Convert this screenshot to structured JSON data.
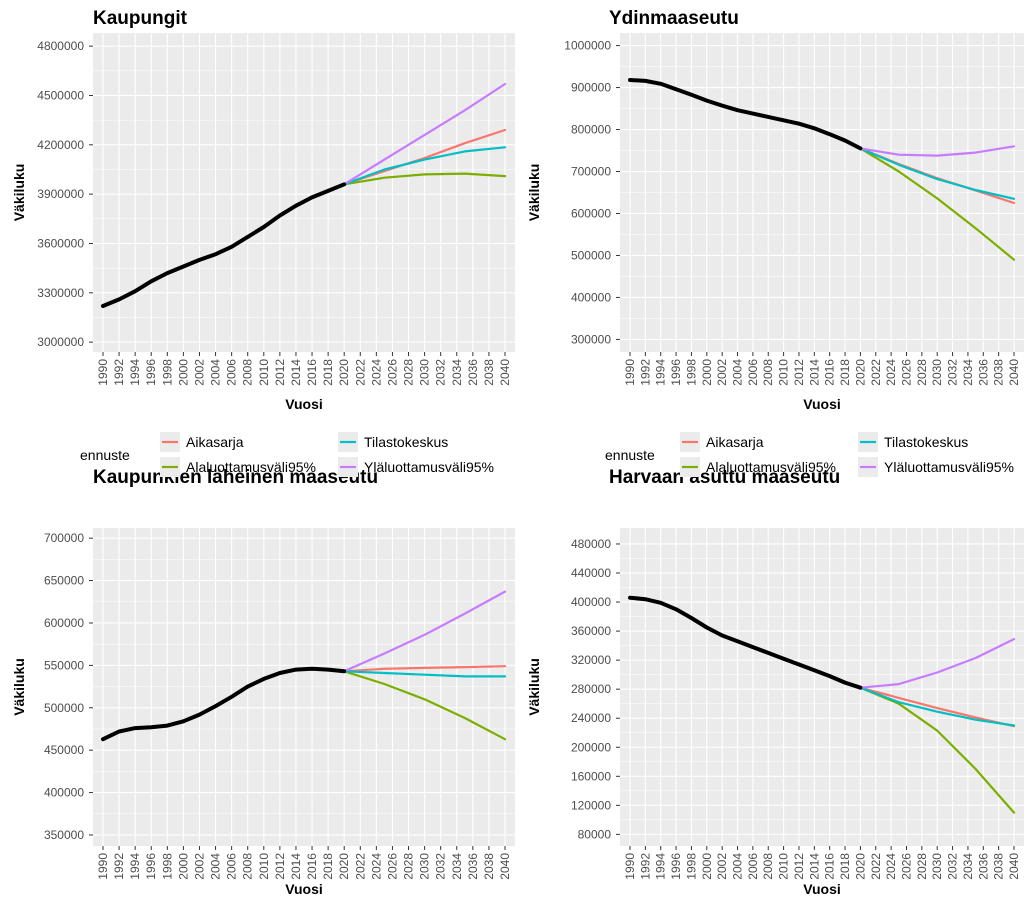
{
  "colors": {
    "historical": "#000000",
    "Aikasarja": "#F8766D",
    "Alaluottamusväli95%": "#7CAE00",
    "Tilastokeskus": "#00BFC4",
    "Yläluottamusväli95%": "#C77CFF",
    "panel_bg": "#EBEBEB",
    "grid": "#FFFFFF"
  },
  "legend": {
    "title": "ennuste",
    "entries": [
      "Aikasarja",
      "Alaluottamusväli95%",
      "Tilastokeskus",
      "Yläluottamusväli95%"
    ]
  },
  "chart_data": [
    {
      "type": "line",
      "title": "Kaupungit",
      "xlabel": "Vuosi",
      "ylabel": "Väkiluku",
      "xlim": [
        1990,
        2040
      ],
      "ylim": [
        2940000,
        4880000
      ],
      "x_ticks": [
        1990,
        1992,
        1994,
        1996,
        1998,
        2000,
        2002,
        2004,
        2006,
        2008,
        2010,
        2012,
        2014,
        2016,
        2018,
        2020,
        2022,
        2024,
        2026,
        2028,
        2030,
        2032,
        2034,
        2036,
        2038,
        2040
      ],
      "y_ticks": [
        3000000,
        3300000,
        3600000,
        3900000,
        4200000,
        4500000,
        4800000
      ],
      "y_tick_labels": [
        "3000000",
        "3300000",
        "3600000",
        "3900000",
        "4200000",
        "4500000",
        "4800000"
      ],
      "historical": {
        "x": [
          1990,
          1992,
          1994,
          1996,
          1998,
          2000,
          2002,
          2004,
          2006,
          2008,
          2010,
          2012,
          2014,
          2016,
          2018,
          2020
        ],
        "y": [
          3220000,
          3260000,
          3310000,
          3370000,
          3420000,
          3460000,
          3500000,
          3535000,
          3580000,
          3640000,
          3700000,
          3770000,
          3830000,
          3880000,
          3920000,
          3960000
        ]
      },
      "series": [
        {
          "name": "Aikasarja",
          "x": [
            2020,
            2025,
            2030,
            2035,
            2040
          ],
          "y": [
            3960000,
            4040000,
            4120000,
            4210000,
            4290000
          ]
        },
        {
          "name": "Alaluottamusväli95%",
          "x": [
            2020,
            2025,
            2030,
            2035,
            2040
          ],
          "y": [
            3960000,
            4000000,
            4020000,
            4025000,
            4010000
          ]
        },
        {
          "name": "Tilastokeskus",
          "x": [
            2020,
            2025,
            2030,
            2035,
            2040
          ],
          "y": [
            3960000,
            4050000,
            4110000,
            4160000,
            4185000
          ]
        },
        {
          "name": "Yläluottamusväli95%",
          "x": [
            2020,
            2025,
            2030,
            2035,
            2040
          ],
          "y": [
            3960000,
            4110000,
            4260000,
            4410000,
            4570000
          ]
        }
      ]
    },
    {
      "type": "line",
      "title": "Ydinmaaseutu",
      "xlabel": "Vuosi",
      "ylabel": "Väkiluku",
      "xlim": [
        1990,
        2040
      ],
      "ylim": [
        270000,
        1030000
      ],
      "x_ticks": [
        1990,
        1992,
        1994,
        1996,
        1998,
        2000,
        2002,
        2004,
        2006,
        2008,
        2010,
        2012,
        2014,
        2016,
        2018,
        2020,
        2022,
        2024,
        2026,
        2028,
        2030,
        2032,
        2034,
        2036,
        2038,
        2040
      ],
      "y_ticks": [
        300000,
        400000,
        500000,
        600000,
        700000,
        800000,
        900000,
        1000000
      ],
      "y_tick_labels": [
        "300000",
        "400000",
        "500000",
        "600000",
        "700000",
        "800000",
        "900000",
        "1000000"
      ],
      "historical": {
        "x": [
          1990,
          1992,
          1994,
          1996,
          1998,
          2000,
          2002,
          2004,
          2006,
          2008,
          2010,
          2012,
          2014,
          2016,
          2018,
          2020
        ],
        "y": [
          918000,
          916000,
          909000,
          896000,
          883000,
          869000,
          857000,
          846000,
          838000,
          830000,
          822000,
          814000,
          803000,
          789000,
          774000,
          755000
        ]
      },
      "series": [
        {
          "name": "Aikasarja",
          "x": [
            2020,
            2025,
            2030,
            2035,
            2040
          ],
          "y": [
            755000,
            718000,
            684000,
            655000,
            625000
          ]
        },
        {
          "name": "Alaluottamusväli95%",
          "x": [
            2020,
            2025,
            2030,
            2035,
            2040
          ],
          "y": [
            755000,
            700000,
            636000,
            565000,
            490000
          ]
        },
        {
          "name": "Tilastokeskus",
          "x": [
            2020,
            2025,
            2030,
            2035,
            2040
          ],
          "y": [
            755000,
            716000,
            682000,
            656000,
            635000
          ]
        },
        {
          "name": "Yläluottamusväli95%",
          "x": [
            2020,
            2025,
            2030,
            2035,
            2040
          ],
          "y": [
            755000,
            740000,
            738000,
            745000,
            760000
          ]
        }
      ]
    },
    {
      "type": "line",
      "title": "Kaupunkien läheinen maaseutu",
      "xlabel": "Vuosi",
      "ylabel": "Väkiluku",
      "xlim": [
        1990,
        2040
      ],
      "ylim": [
        337000,
        712000
      ],
      "x_ticks": [
        1990,
        1992,
        1994,
        1996,
        1998,
        2000,
        2002,
        2004,
        2006,
        2008,
        2010,
        2012,
        2014,
        2016,
        2018,
        2020,
        2022,
        2024,
        2026,
        2028,
        2030,
        2032,
        2034,
        2036,
        2038,
        2040
      ],
      "y_ticks": [
        350000,
        400000,
        450000,
        500000,
        550000,
        600000,
        650000,
        700000
      ],
      "y_tick_labels": [
        "350000",
        "400000",
        "450000",
        "500000",
        "550000",
        "600000",
        "650000",
        "700000"
      ],
      "historical": {
        "x": [
          1990,
          1992,
          1994,
          1996,
          1998,
          2000,
          2002,
          2004,
          2006,
          2008,
          2010,
          2012,
          2014,
          2016,
          2018,
          2020
        ],
        "y": [
          463000,
          472000,
          476000,
          477000,
          479000,
          484000,
          492000,
          502000,
          513000,
          525000,
          534000,
          541000,
          545000,
          546000,
          545000,
          543000
        ]
      },
      "series": [
        {
          "name": "Aikasarja",
          "x": [
            2020,
            2025,
            2030,
            2035,
            2040
          ],
          "y": [
            543000,
            546000,
            547000,
            548000,
            549000
          ]
        },
        {
          "name": "Alaluottamusväli95%",
          "x": [
            2020,
            2025,
            2030,
            2035,
            2040
          ],
          "y": [
            543000,
            528000,
            510000,
            488000,
            463000
          ]
        },
        {
          "name": "Tilastokeskus",
          "x": [
            2020,
            2025,
            2030,
            2035,
            2040
          ],
          "y": [
            543000,
            541000,
            539000,
            537000,
            537000
          ]
        },
        {
          "name": "Yläluottamusväli95%",
          "x": [
            2020,
            2025,
            2030,
            2035,
            2040
          ],
          "y": [
            543000,
            564000,
            586000,
            611000,
            637000
          ]
        }
      ]
    },
    {
      "type": "line",
      "title": "Harvaan asuttu maaseutu",
      "xlabel": "Vuosi",
      "ylabel": "Väkiluku",
      "xlim": [
        1990,
        2040
      ],
      "ylim": [
        64000,
        502000
      ],
      "x_ticks": [
        1990,
        1992,
        1994,
        1996,
        1998,
        2000,
        2002,
        2004,
        2006,
        2008,
        2010,
        2012,
        2014,
        2016,
        2018,
        2020,
        2022,
        2024,
        2026,
        2028,
        2030,
        2032,
        2034,
        2036,
        2038,
        2040
      ],
      "y_ticks": [
        80000,
        120000,
        160000,
        200000,
        240000,
        280000,
        320000,
        360000,
        400000,
        440000,
        480000
      ],
      "y_tick_labels": [
        "80000",
        "120000",
        "160000",
        "200000",
        "240000",
        "280000",
        "320000",
        "360000",
        "400000",
        "440000",
        "480000"
      ],
      "historical": {
        "x": [
          1990,
          1992,
          1994,
          1996,
          1998,
          2000,
          2002,
          2004,
          2006,
          2008,
          2010,
          2012,
          2014,
          2016,
          2018,
          2020
        ],
        "y": [
          406000,
          404000,
          399000,
          390000,
          378000,
          365000,
          354000,
          346000,
          338000,
          330000,
          322000,
          314000,
          306000,
          298000,
          289000,
          282000
        ]
      },
      "series": [
        {
          "name": "Aikasarja",
          "x": [
            2020,
            2025,
            2030,
            2035,
            2040
          ],
          "y": [
            282000,
            268000,
            254000,
            241000,
            229000
          ]
        },
        {
          "name": "Alaluottamusväli95%",
          "x": [
            2020,
            2025,
            2030,
            2035,
            2040
          ],
          "y": [
            282000,
            260000,
            223000,
            170000,
            110000
          ]
        },
        {
          "name": "Tilastokeskus",
          "x": [
            2020,
            2025,
            2030,
            2035,
            2040
          ],
          "y": [
            282000,
            262000,
            249000,
            238000,
            230000
          ]
        },
        {
          "name": "Yläluottamusväli95%",
          "x": [
            2020,
            2025,
            2030,
            2035,
            2040
          ],
          "y": [
            282000,
            287000,
            303000,
            323000,
            349000
          ]
        }
      ]
    }
  ]
}
